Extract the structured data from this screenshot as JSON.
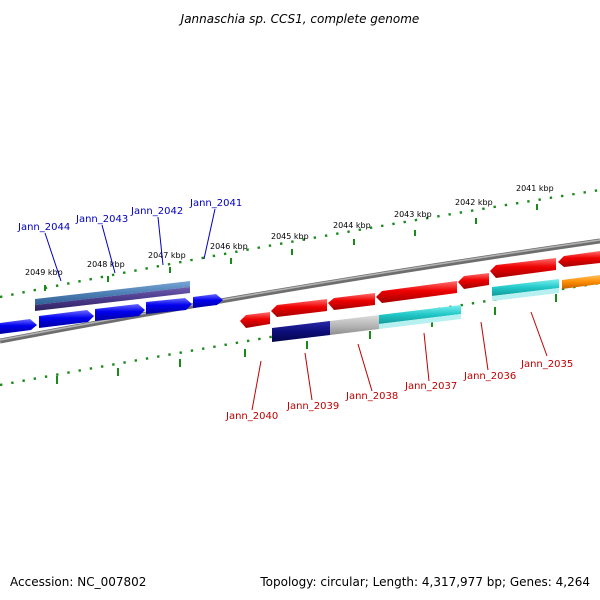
{
  "title": "Jannaschia sp. CCS1, complete genome",
  "footer": {
    "accession": "Accession: NC_007802",
    "topology": "Topology: circular; Length: 4,317,977 bp; Genes: 4,264"
  },
  "colors": {
    "backbone": "#808080",
    "tick": "#1a8a1a",
    "forward_gene": "#0000ee",
    "reverse_gene": "#ee0000",
    "top_label": "#0000c0",
    "bottom_label": "#c00000",
    "cds_blue": "#4e7fb5",
    "cds_purple": "#4b3a8a",
    "cds_navy": "#0d0d7a",
    "cds_grey": "#b8b8b8",
    "cds_cyan": "#22c8c8",
    "cds_orange": "#ff8c00"
  },
  "kbp_ticks": [
    "2049 kbp",
    "2048 kbp",
    "2047 kbp",
    "2046 kbp",
    "2045 kbp",
    "2044 kbp",
    "2043 kbp",
    "2042 kbp",
    "2041 kbp"
  ],
  "forward_genes": [
    {
      "label": "Jann_2044",
      "color": "#0000ee"
    },
    {
      "label": "Jann_2043",
      "color": "#0000ee"
    },
    {
      "label": "Jann_2042",
      "color": "#0000ee"
    },
    {
      "label": "Jann_2041",
      "color": "#0000ee"
    }
  ],
  "reverse_genes": [
    {
      "label": "Jann_2040",
      "color": "#ee0000"
    },
    {
      "label": "Jann_2039",
      "color": "#ee0000"
    },
    {
      "label": "Jann_2038",
      "color": "#ee0000"
    },
    {
      "label": "Jann_2037",
      "color": "#ee0000"
    },
    {
      "label": "Jann_2036",
      "color": "#ee0000"
    },
    {
      "label": "Jann_2035",
      "color": "#ee0000"
    }
  ]
}
